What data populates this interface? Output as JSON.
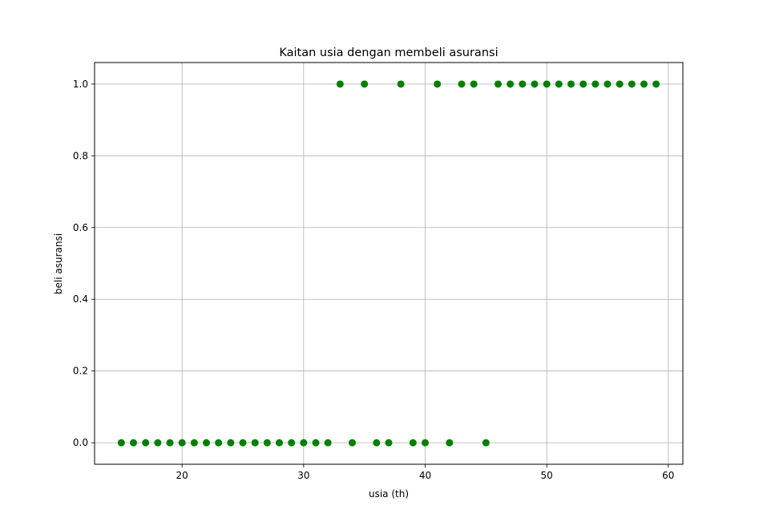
{
  "chart_data": {
    "type": "scatter",
    "title": "Kaitan usia dengan membeli asuransi",
    "xlabel": "usia (th)",
    "ylabel": "beli asuransi",
    "xlim": [
      12.8,
      61.2
    ],
    "ylim": [
      -0.06,
      1.06
    ],
    "xticks": [
      20,
      30,
      40,
      50,
      60
    ],
    "yticks": [
      0.0,
      0.2,
      0.4,
      0.6,
      0.8,
      1.0
    ],
    "xtick_labels": [
      "20",
      "30",
      "40",
      "50",
      "60"
    ],
    "ytick_labels": [
      "0.0",
      "0.2",
      "0.4",
      "0.6",
      "0.8",
      "1.0"
    ],
    "grid": true,
    "marker_color": "#008000",
    "series": [
      {
        "x": [
          15,
          16,
          17,
          18,
          19,
          20,
          21,
          22,
          23,
          24,
          25,
          26,
          27,
          28,
          29,
          30,
          31,
          32,
          33,
          34,
          35,
          36,
          37,
          38,
          39,
          40,
          41,
          42,
          43,
          44,
          45,
          46,
          47,
          48,
          49,
          50,
          51,
          52,
          53,
          54,
          55,
          56,
          57,
          58,
          59
        ],
        "y": [
          0,
          0,
          0,
          0,
          0,
          0,
          0,
          0,
          0,
          0,
          0,
          0,
          0,
          0,
          0,
          0,
          0,
          0,
          1,
          0,
          1,
          0,
          0,
          1,
          0,
          0,
          1,
          0,
          1,
          1,
          0,
          1,
          1,
          1,
          1,
          1,
          1,
          1,
          1,
          1,
          1,
          1,
          1,
          1,
          1
        ]
      }
    ]
  }
}
